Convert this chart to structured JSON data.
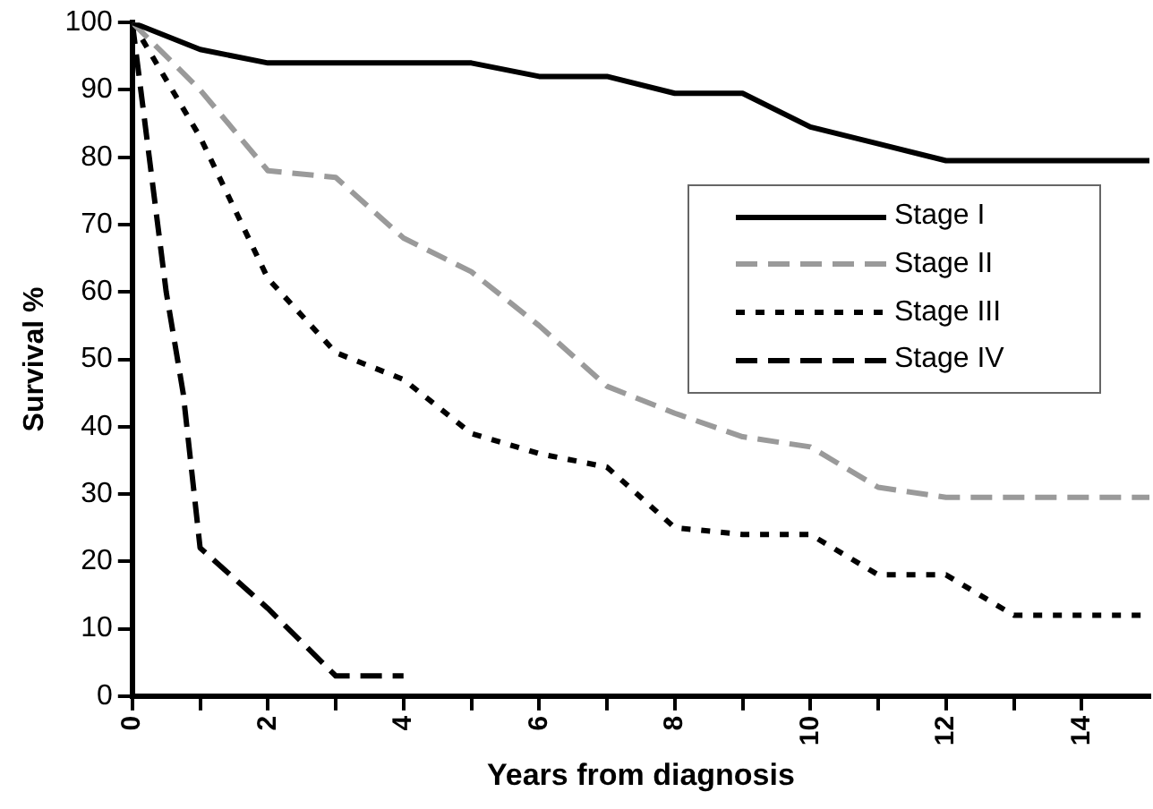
{
  "chart_data": {
    "type": "line",
    "xlabel": "Years from diagnosis",
    "ylabel": "Survival %",
    "xlim": [
      0,
      15
    ],
    "ylim": [
      0,
      100
    ],
    "xticks": [
      0,
      {
        "value": 1,
        "label": null
      },
      2,
      {
        "value": 3,
        "label": null
      },
      4,
      {
        "value": 5,
        "label": null
      },
      6,
      {
        "value": 7,
        "label": null
      },
      8,
      {
        "value": 9,
        "label": null
      },
      10,
      {
        "value": 11,
        "label": null
      },
      12,
      {
        "value": 13,
        "label": null
      },
      14
    ],
    "yticks": [
      0,
      10,
      20,
      30,
      40,
      50,
      60,
      70,
      80,
      90,
      100
    ],
    "grid": false,
    "legend": "right",
    "marker": "none",
    "series": [
      {
        "name": "Stage I",
        "color": "#000000",
        "line_style": "solid",
        "x": [
          0,
          1,
          2,
          3,
          4,
          5,
          6,
          7,
          8,
          9,
          10,
          11,
          12,
          13,
          14,
          15
        ],
        "values": [
          100,
          96,
          94,
          94,
          94,
          94,
          92,
          92,
          89.5,
          89.5,
          84.5,
          82,
          79.5,
          79.5,
          79.5,
          79.5
        ]
      },
      {
        "name": "Stage II",
        "color": "#9a9a9a",
        "line_style": "dashed",
        "x": [
          0,
          1,
          2,
          3,
          4,
          5,
          6,
          7,
          8,
          9,
          10,
          11,
          12,
          13,
          14,
          15
        ],
        "values": [
          100,
          90,
          78,
          77,
          68,
          63,
          55,
          46,
          42,
          38.5,
          37,
          31,
          29.5,
          29.5,
          29.5,
          29.5
        ]
      },
      {
        "name": "Stage III",
        "color": "#000000",
        "line_style": "dotted",
        "x": [
          0,
          1,
          2,
          3,
          4,
          5,
          6,
          7,
          8,
          9,
          10,
          11,
          12,
          13,
          14,
          15
        ],
        "values": [
          100,
          83,
          62,
          51,
          47,
          39,
          36,
          34,
          25,
          24,
          24,
          18,
          18,
          12,
          12,
          12
        ]
      },
      {
        "name": "Stage IV",
        "color": "#000000",
        "line_style": "dashed",
        "x": [
          0,
          0.25,
          0.5,
          0.75,
          1,
          2,
          3,
          4
        ],
        "values": [
          100,
          80,
          60,
          45,
          22,
          13,
          3,
          3
        ]
      }
    ]
  }
}
